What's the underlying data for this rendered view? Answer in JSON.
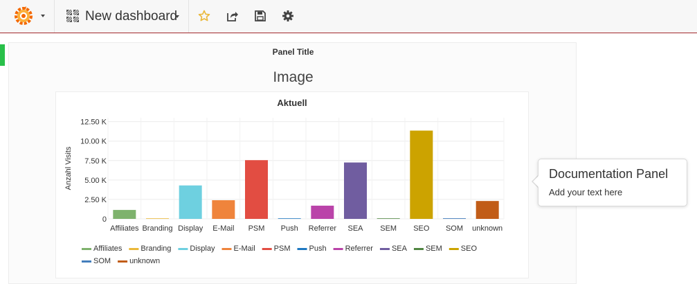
{
  "navbar": {
    "dashboard_title": "New dashboard",
    "brand_color": "#f46800",
    "border_color": "#a3282c",
    "icons": [
      "grafana-logo-icon",
      "dashboard-grid-icon",
      "star-icon",
      "share-icon",
      "save-icon",
      "settings-icon"
    ]
  },
  "panel": {
    "title": "Panel Title",
    "image_heading": "Image"
  },
  "documentation": {
    "title": "Documentation Panel",
    "text": "Add your text here"
  },
  "chart_data": {
    "type": "bar",
    "title": "Aktuell",
    "xlabel": "",
    "ylabel": "Anzahl Visits",
    "ylim": [
      0,
      13000
    ],
    "yticks": [
      0,
      2500,
      5000,
      7500,
      10000,
      12500
    ],
    "ytick_labels": [
      "0",
      "2.50 K",
      "5.00 K",
      "7.50 K",
      "10.00 K",
      "12.50 K"
    ],
    "grid": true,
    "legend_position": "bottom",
    "categories": [
      "Affiliates",
      "Branding",
      "Display",
      "E-Mail",
      "PSM",
      "Push",
      "Referrer",
      "SEA",
      "SEM",
      "SEO",
      "SOM",
      "unknown"
    ],
    "values": [
      1150,
      50,
      4300,
      2400,
      7550,
      30,
      1700,
      7250,
      20,
      11350,
      80,
      2300
    ],
    "colors": [
      "#7eb26d",
      "#eab839",
      "#6ed0e0",
      "#ef843c",
      "#e24d42",
      "#1f78c1",
      "#ba43a9",
      "#705da0",
      "#508642",
      "#cca300",
      "#447ebc",
      "#c15c17"
    ]
  }
}
